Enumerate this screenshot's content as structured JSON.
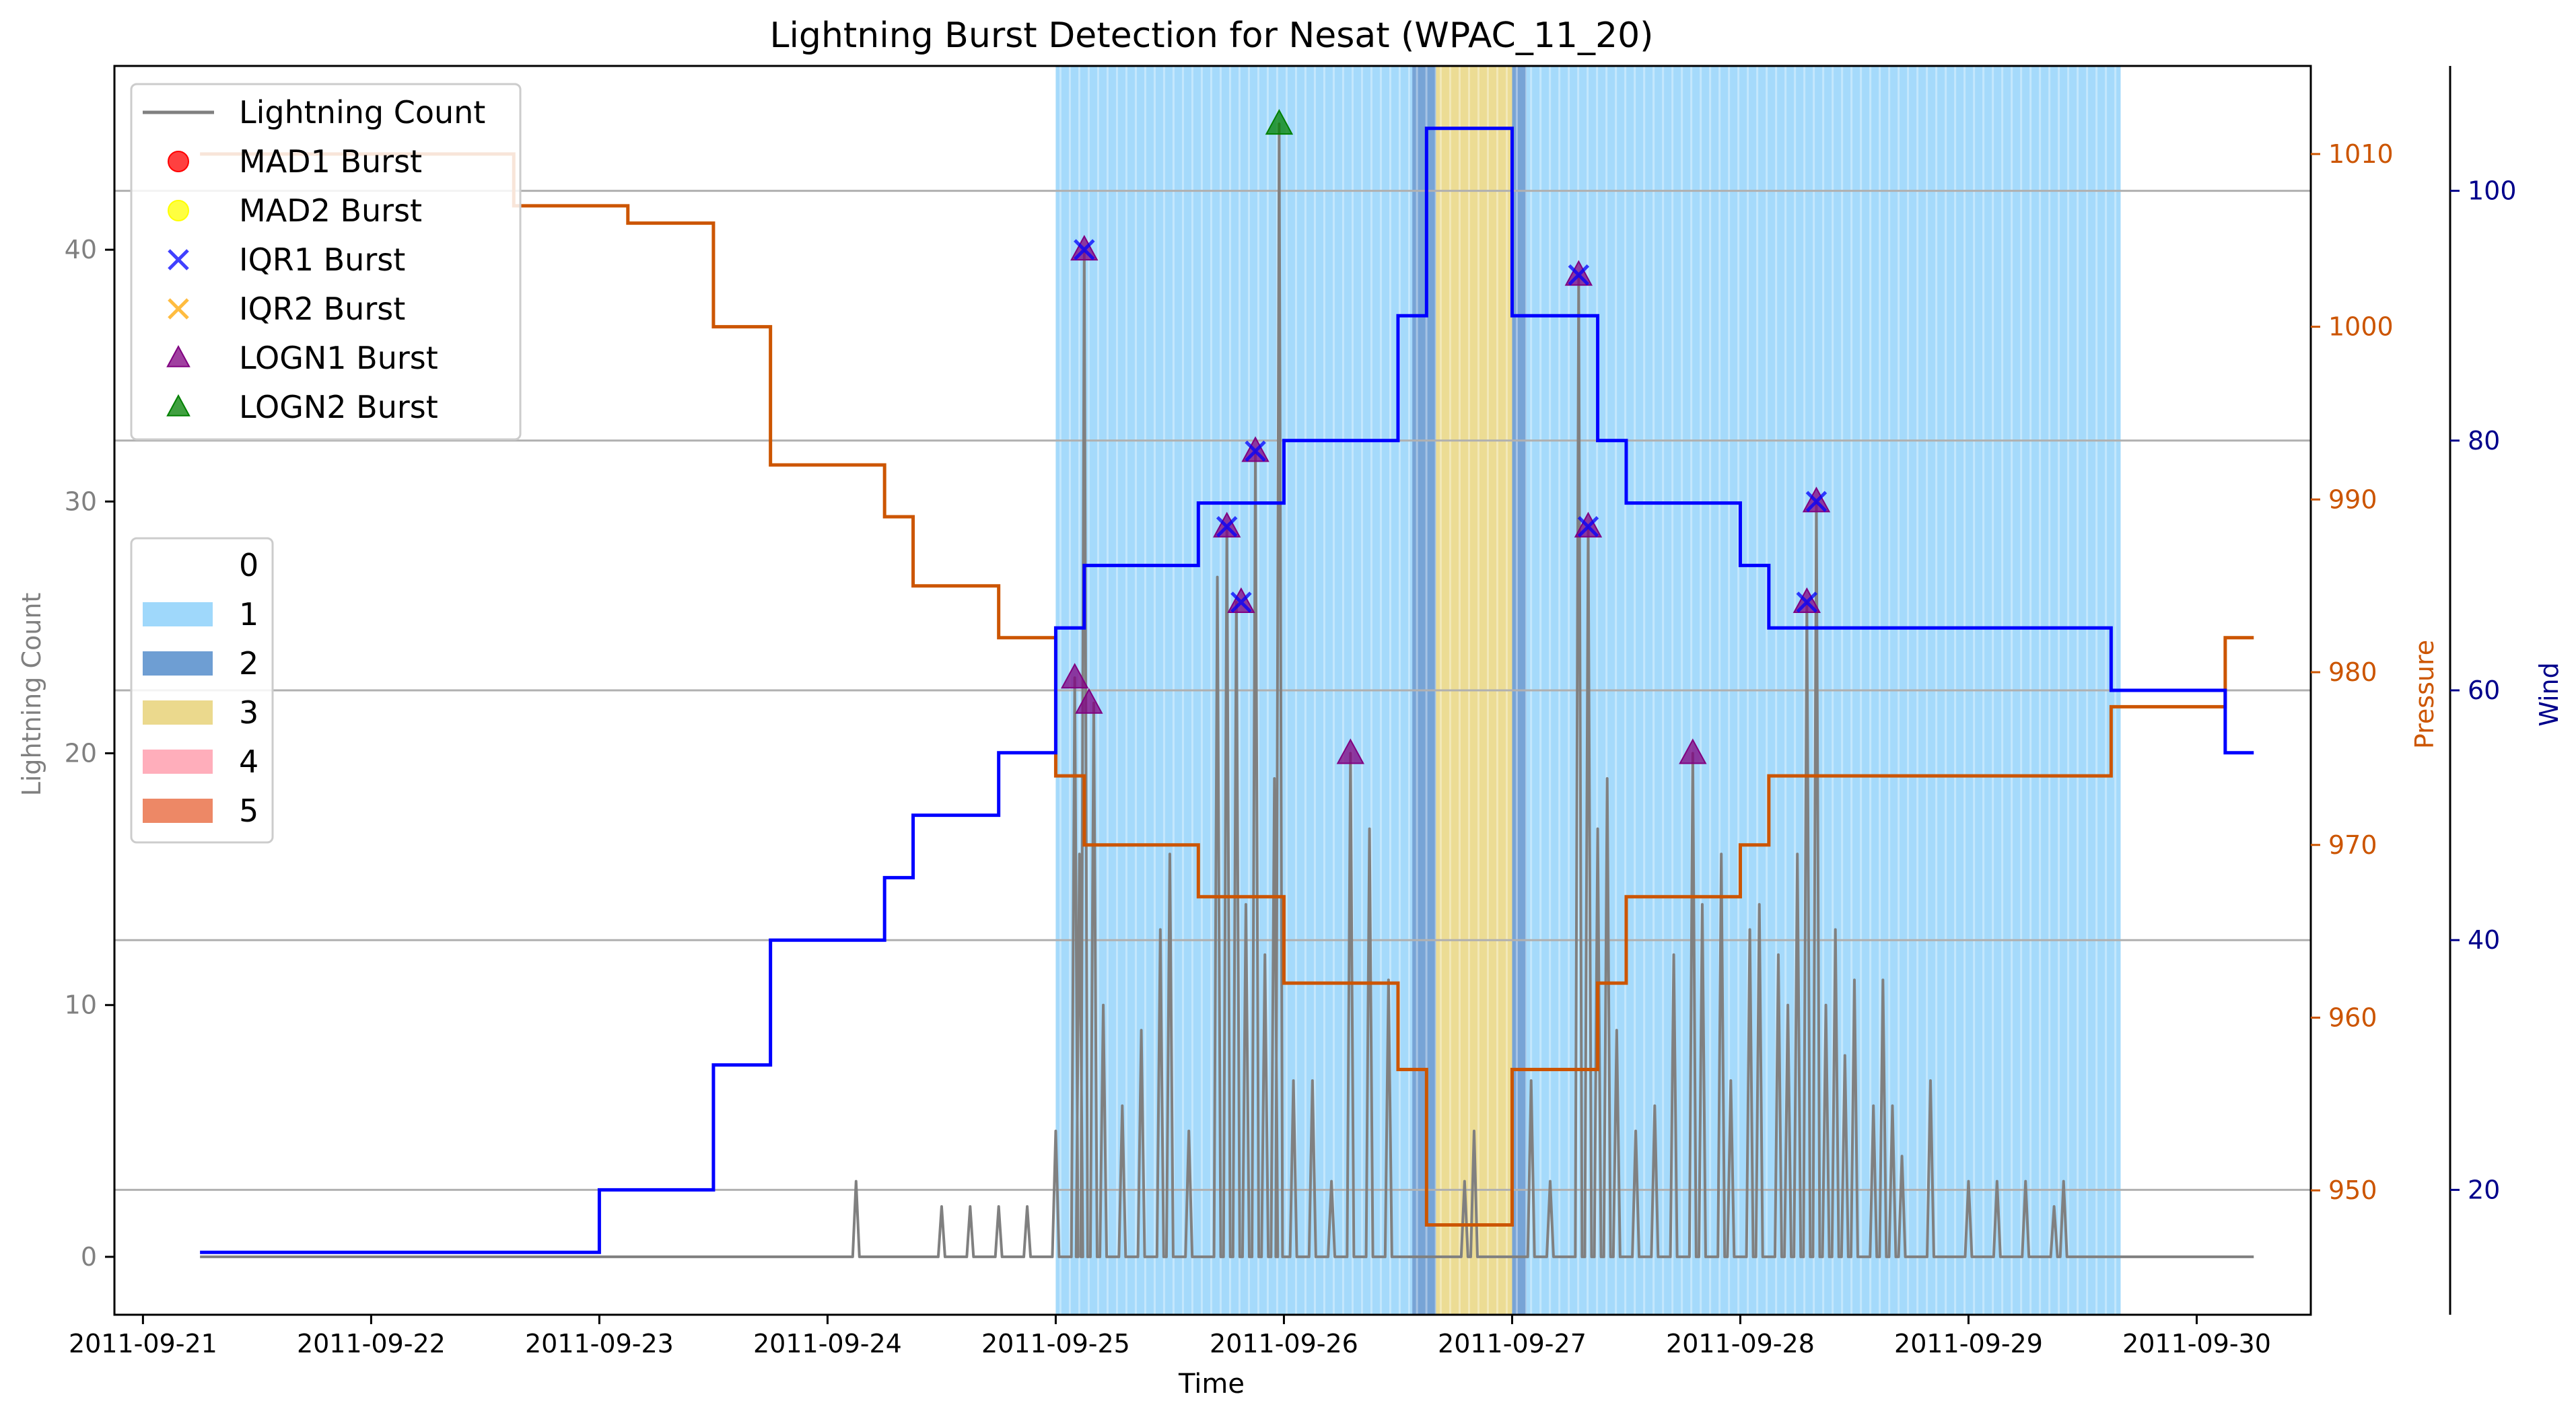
{
  "chart_data": {
    "type": "line",
    "title": "Lightning Burst Detection for Nesat (WPAC_11_20)",
    "xlabel": "Time",
    "ylabel_left": "Lightning Count",
    "ylabel_pressure": "Pressure",
    "ylabel_wind": "Wind",
    "x_ticks": [
      "2011-09-21",
      "2011-09-22",
      "2011-09-23",
      "2011-09-24",
      "2011-09-25",
      "2011-09-26",
      "2011-09-27",
      "2011-09-28",
      "2011-09-29",
      "2011-09-30"
    ],
    "y_left_ticks": [
      0,
      10,
      20,
      30,
      40
    ],
    "y_left_range": [
      -2.3,
      47.3
    ],
    "y_pressure_ticks": [
      950,
      960,
      970,
      980,
      990,
      1000,
      1010
    ],
    "y_pressure_range": [
      942.8,
      1015.1
    ],
    "y_wind_ticks": [
      20,
      40,
      60,
      80,
      100
    ],
    "y_wind_range": [
      10,
      110
    ],
    "x_range": [
      "2011-09-20T21:00",
      "2011-09-30T12:00"
    ],
    "grid": "horizontal",
    "legend_series": [
      {
        "label": "Lightning Count",
        "color": "#808080",
        "marker": "line"
      },
      {
        "label": "MAD1 Burst",
        "color": "#ff0000",
        "marker": "circle"
      },
      {
        "label": "MAD2 Burst",
        "color": "#ffff00",
        "marker": "circle"
      },
      {
        "label": "IQR1 Burst",
        "color": "#0000ff",
        "marker": "x"
      },
      {
        "label": "IQR2 Burst",
        "color": "#ffa500",
        "marker": "x"
      },
      {
        "label": "LOGN1 Burst",
        "color": "#800080",
        "marker": "triangle"
      },
      {
        "label": "LOGN2 Burst",
        "color": "#008000",
        "marker": "triangle"
      }
    ],
    "legend_categories": [
      {
        "label": "0",
        "color": "#ffffff"
      },
      {
        "label": "1",
        "color": "#87cefa"
      },
      {
        "label": "2",
        "color": "#4a86c8"
      },
      {
        "label": "3",
        "color": "#e6d070"
      },
      {
        "label": "4",
        "color": "#ff9aaa"
      },
      {
        "label": "5",
        "color": "#e86a40"
      }
    ],
    "category_bands": [
      {
        "start": "2011-09-25T00:00",
        "end": "2011-09-26T13:30",
        "category": 1
      },
      {
        "start": "2011-09-26T13:30",
        "end": "2011-09-26T16:00",
        "category": 2
      },
      {
        "start": "2011-09-26T16:00",
        "end": "2011-09-27T00:00",
        "category": 3
      },
      {
        "start": "2011-09-27T00:00",
        "end": "2011-09-27T01:30",
        "category": 2
      },
      {
        "start": "2011-09-27T01:30",
        "end": "2011-09-29T16:00",
        "category": 1
      }
    ],
    "pressure": {
      "color": "#cc5500",
      "steps": [
        [
          "2011-09-21T06:00",
          1010
        ],
        [
          "2011-09-22T15:00",
          1007
        ],
        [
          "2011-09-23T03:00",
          1006
        ],
        [
          "2011-09-23T12:00",
          1000
        ],
        [
          "2011-09-23T18:00",
          992
        ],
        [
          "2011-09-24T06:00",
          989
        ],
        [
          "2011-09-24T09:00",
          985
        ],
        [
          "2011-09-24T18:00",
          982
        ],
        [
          "2011-09-25T00:00",
          974
        ],
        [
          "2011-09-25T03:00",
          970
        ],
        [
          "2011-09-25T15:00",
          967
        ],
        [
          "2011-09-26T00:00",
          962
        ],
        [
          "2011-09-26T12:00",
          957
        ],
        [
          "2011-09-26T15:00",
          948
        ],
        [
          "2011-09-27T00:00",
          957
        ],
        [
          "2011-09-27T09:00",
          962
        ],
        [
          "2011-09-27T12:00",
          967
        ],
        [
          "2011-09-28T00:00",
          970
        ],
        [
          "2011-09-28T03:00",
          974
        ],
        [
          "2011-09-29T15:00",
          978
        ],
        [
          "2011-09-30T03:00",
          982
        ],
        [
          "2011-09-30T06:00",
          982
        ]
      ]
    },
    "wind": {
      "color": "#0000ff",
      "steps": [
        [
          "2011-09-21T06:00",
          15
        ],
        [
          "2011-09-23T00:00",
          20
        ],
        [
          "2011-09-23T12:00",
          30
        ],
        [
          "2011-09-23T18:00",
          40
        ],
        [
          "2011-09-24T06:00",
          45
        ],
        [
          "2011-09-24T09:00",
          50
        ],
        [
          "2011-09-24T18:00",
          55
        ],
        [
          "2011-09-25T00:00",
          65
        ],
        [
          "2011-09-25T03:00",
          70
        ],
        [
          "2011-09-25T15:00",
          75
        ],
        [
          "2011-09-26T00:00",
          80
        ],
        [
          "2011-09-26T12:00",
          90
        ],
        [
          "2011-09-26T15:00",
          105
        ],
        [
          "2011-09-27T00:00",
          90
        ],
        [
          "2011-09-27T09:00",
          80
        ],
        [
          "2011-09-27T12:00",
          75
        ],
        [
          "2011-09-28T00:00",
          70
        ],
        [
          "2011-09-28T03:00",
          65
        ],
        [
          "2011-09-29T15:00",
          60
        ],
        [
          "2011-09-30T03:00",
          55
        ],
        [
          "2011-09-30T06:00",
          55
        ]
      ]
    },
    "lightning": {
      "color": "#808080",
      "start": "2011-09-21T06:00",
      "end": "2011-09-30T06:00",
      "spikes": [
        [
          "2011-09-24T03:00",
          3
        ],
        [
          "2011-09-24T12:00",
          2
        ],
        [
          "2011-09-24T15:00",
          2
        ],
        [
          "2011-09-24T18:00",
          2
        ],
        [
          "2011-09-24T21:00",
          2
        ],
        [
          "2011-09-25T00:00",
          5
        ],
        [
          "2011-09-25T02:00",
          23
        ],
        [
          "2011-09-25T02:30",
          16
        ],
        [
          "2011-09-25T03:00",
          40
        ],
        [
          "2011-09-25T04:00",
          22
        ],
        [
          "2011-09-25T05:00",
          10
        ],
        [
          "2011-09-25T07:00",
          6
        ],
        [
          "2011-09-25T09:00",
          9
        ],
        [
          "2011-09-25T11:00",
          13
        ],
        [
          "2011-09-25T12:00",
          16
        ],
        [
          "2011-09-25T14:00",
          5
        ],
        [
          "2011-09-25T17:00",
          27
        ],
        [
          "2011-09-25T18:00",
          29
        ],
        [
          "2011-09-25T19:00",
          26
        ],
        [
          "2011-09-25T20:00",
          14
        ],
        [
          "2011-09-25T21:00",
          32
        ],
        [
          "2011-09-25T22:00",
          12
        ],
        [
          "2011-09-25T23:00",
          19
        ],
        [
          "2011-09-25T23:30",
          45
        ],
        [
          "2011-09-26T01:00",
          7
        ],
        [
          "2011-09-26T03:00",
          7
        ],
        [
          "2011-09-26T05:00",
          3
        ],
        [
          "2011-09-26T07:00",
          20
        ],
        [
          "2011-09-26T09:00",
          17
        ],
        [
          "2011-09-26T11:00",
          11
        ],
        [
          "2011-09-26T19:00",
          3
        ],
        [
          "2011-09-26T20:00",
          5
        ],
        [
          "2011-09-27T02:00",
          7
        ],
        [
          "2011-09-27T04:00",
          3
        ],
        [
          "2011-09-27T07:00",
          39
        ],
        [
          "2011-09-27T08:00",
          29
        ],
        [
          "2011-09-27T09:00",
          17
        ],
        [
          "2011-09-27T10:00",
          19
        ],
        [
          "2011-09-27T11:00",
          9
        ],
        [
          "2011-09-27T13:00",
          5
        ],
        [
          "2011-09-27T15:00",
          6
        ],
        [
          "2011-09-27T17:00",
          12
        ],
        [
          "2011-09-27T19:00",
          20
        ],
        [
          "2011-09-27T20:00",
          14
        ],
        [
          "2011-09-27T22:00",
          16
        ],
        [
          "2011-09-27T23:00",
          7
        ],
        [
          "2011-09-28T01:00",
          13
        ],
        [
          "2011-09-28T02:00",
          14
        ],
        [
          "2011-09-28T04:00",
          12
        ],
        [
          "2011-09-28T05:00",
          10
        ],
        [
          "2011-09-28T06:00",
          16
        ],
        [
          "2011-09-28T07:00",
          26
        ],
        [
          "2011-09-28T08:00",
          30
        ],
        [
          "2011-09-28T09:00",
          10
        ],
        [
          "2011-09-28T10:00",
          13
        ],
        [
          "2011-09-28T11:00",
          8
        ],
        [
          "2011-09-28T12:00",
          11
        ],
        [
          "2011-09-28T14:00",
          6
        ],
        [
          "2011-09-28T15:00",
          11
        ],
        [
          "2011-09-28T16:00",
          6
        ],
        [
          "2011-09-28T17:00",
          4
        ],
        [
          "2011-09-28T20:00",
          7
        ],
        [
          "2011-09-29T00:00",
          3
        ],
        [
          "2011-09-29T03:00",
          3
        ],
        [
          "2011-09-29T06:00",
          3
        ],
        [
          "2011-09-29T09:00",
          2
        ],
        [
          "2011-09-29T10:00",
          3
        ]
      ]
    },
    "bursts": {
      "IQR1": [
        [
          "2011-09-25T03:00",
          40
        ],
        [
          "2011-09-25T18:00",
          29
        ],
        [
          "2011-09-25T19:30",
          26
        ],
        [
          "2011-09-25T21:00",
          32
        ],
        [
          "2011-09-27T07:00",
          39
        ],
        [
          "2011-09-27T08:00",
          29
        ],
        [
          "2011-09-28T07:00",
          26
        ],
        [
          "2011-09-28T08:00",
          30
        ]
      ],
      "LOGN1": [
        [
          "2011-09-25T02:00",
          23
        ],
        [
          "2011-09-25T03:00",
          40
        ],
        [
          "2011-09-25T03:30",
          22
        ],
        [
          "2011-09-25T18:00",
          29
        ],
        [
          "2011-09-25T19:30",
          26
        ],
        [
          "2011-09-25T21:00",
          32
        ],
        [
          "2011-09-26T07:00",
          20
        ],
        [
          "2011-09-27T07:00",
          39
        ],
        [
          "2011-09-27T08:00",
          29
        ],
        [
          "2011-09-27T19:00",
          20
        ],
        [
          "2011-09-28T07:00",
          26
        ],
        [
          "2011-09-28T08:00",
          30
        ]
      ],
      "LOGN2": [
        [
          "2011-09-25T23:30",
          45
        ]
      ]
    }
  }
}
